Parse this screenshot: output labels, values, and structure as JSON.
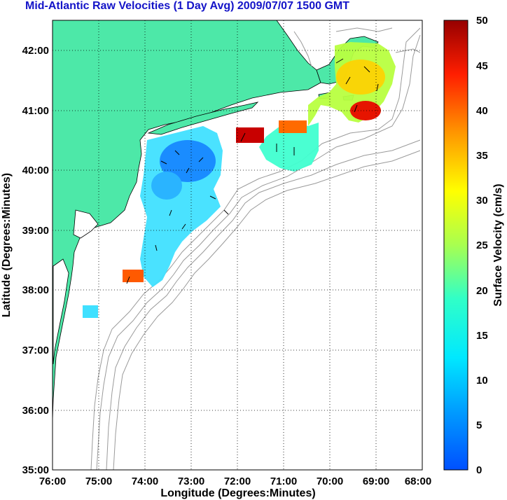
{
  "title": "Mid-Atlantic Raw Velocities (1 Day Avg) 2009/07/07 1500 GMT",
  "map": {
    "xlabel": "Longitude (Degrees:Minutes)",
    "ylabel": "Latitude (Degrees:Minutes)",
    "x_ticks": [
      "76:00",
      "75:00",
      "74:00",
      "73:00",
      "72:00",
      "71:00",
      "70:00",
      "69:00",
      "68:00"
    ],
    "y_ticks": [
      "42:00",
      "41:00",
      "40:00",
      "39:00",
      "38:00",
      "37:00",
      "36:00",
      "35:00"
    ],
    "lon_range": [
      -76,
      -68
    ],
    "lat_range": [
      35,
      42.5
    ],
    "land_color": "#4de8a8",
    "grid": "dotted"
  },
  "colorbar": {
    "label": "Surface Velocity (cm/s)",
    "ticks": [
      "0",
      "5",
      "10",
      "15",
      "20",
      "25",
      "30",
      "35",
      "40",
      "45",
      "50"
    ],
    "range": [
      0,
      50
    ],
    "colormap": "jet"
  }
}
